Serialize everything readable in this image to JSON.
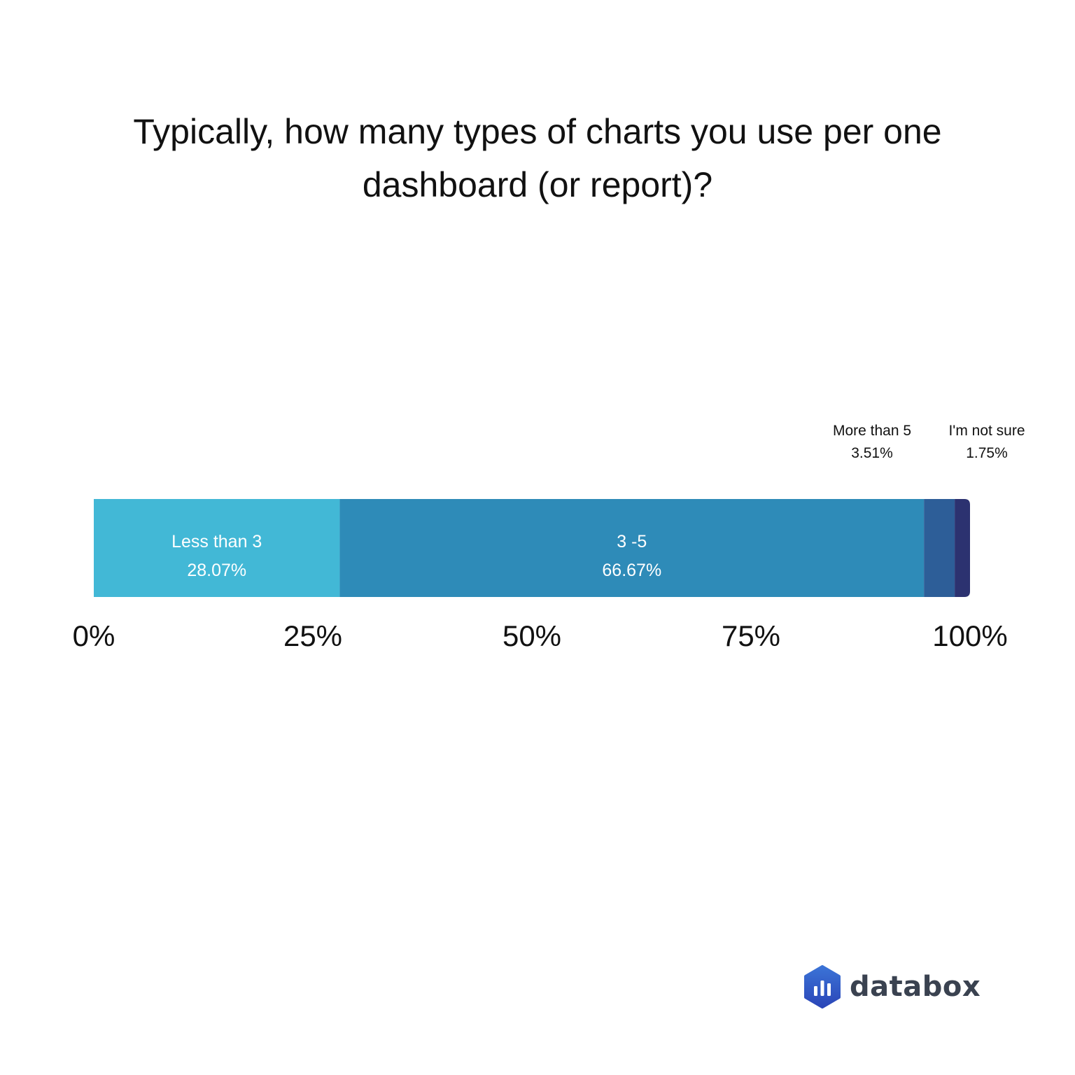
{
  "colors": {
    "less_than_3": "#42b8d6",
    "three_to_five": "#2e8bb8",
    "more_than_5": "#2d5e98",
    "not_sure": "#2c3270",
    "brand_top": "#3b73d6",
    "brand_bottom": "#2b46b8"
  },
  "brand": {
    "name": "databox",
    "icon": "databox-logo-icon"
  },
  "chart_data": {
    "type": "bar",
    "orientation": "horizontal",
    "stacked": true,
    "title": "Typically, how many types of charts you use per one dashboard (or report)?",
    "xlim": [
      0,
      100
    ],
    "x_ticks": [
      "0%",
      "25%",
      "50%",
      "75%",
      "100%"
    ],
    "grid": false,
    "series": [
      {
        "name": "Less than 3",
        "value": 28.07,
        "label": "28.07%",
        "color": "#42b8d6"
      },
      {
        "name": "3 -5",
        "value": 66.67,
        "label": "66.67%",
        "color": "#2e8bb8"
      },
      {
        "name": "More than 5",
        "value": 3.51,
        "label": "3.51%",
        "color": "#2d5e98"
      },
      {
        "name": "I'm not sure",
        "value": 1.75,
        "label": "1.75%",
        "color": "#2c3270"
      }
    ]
  }
}
